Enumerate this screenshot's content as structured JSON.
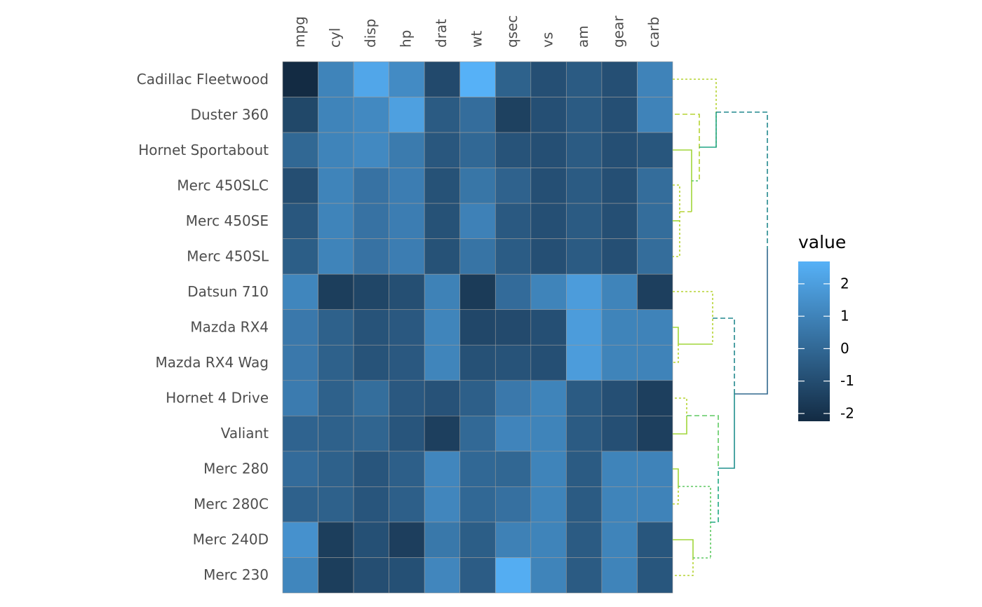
{
  "chart_data": {
    "type": "heatmap",
    "rows": [
      "Cadillac Fleetwood",
      "Duster 360",
      "Hornet Sportabout",
      "Merc 450SLC",
      "Merc 450SE",
      "Merc 450SL",
      "Datsun 710",
      "Mazda RX4",
      "Mazda RX4 Wag",
      "Hornet 4 Drive",
      "Valiant",
      "Merc 280",
      "Merc 280C",
      "Merc 240D",
      "Merc 230"
    ],
    "columns": [
      "mpg",
      "cyl",
      "disp",
      "hp",
      "drat",
      "wt",
      "qsec",
      "vs",
      "am",
      "gear",
      "carb"
    ],
    "values": [
      [
        -2.24,
        1.03,
        2.3,
        1.29,
        -1.13,
        2.69,
        -0.23,
        -0.9,
        -0.48,
        -0.9,
        0.99
      ],
      [
        -1.19,
        1.03,
        1.2,
        2.07,
        -0.49,
        0.2,
        -1.44,
        -0.9,
        -0.48,
        -0.9,
        0.99
      ],
      [
        -0.01,
        1.03,
        1.2,
        0.69,
        -0.63,
        0.0,
        -0.77,
        -0.9,
        -0.48,
        -0.9,
        -0.66
      ],
      [
        -0.95,
        1.03,
        0.38,
        0.79,
        -0.81,
        0.51,
        -0.21,
        -0.9,
        -0.48,
        -0.9,
        0.17
      ],
      [
        -0.63,
        1.03,
        0.38,
        0.79,
        -0.81,
        0.94,
        -0.55,
        -0.9,
        -0.48,
        -0.9,
        0.17
      ],
      [
        -0.38,
        1.03,
        0.38,
        0.79,
        -0.81,
        0.44,
        -0.44,
        -0.9,
        -0.48,
        -0.9,
        0.17
      ],
      [
        1.1,
        -1.55,
        -1.26,
        -0.92,
        0.95,
        -1.66,
        0.13,
        1.03,
        1.93,
        1.03,
        -1.49
      ],
      [
        0.61,
        -0.26,
        -0.75,
        -0.58,
        1.06,
        -1.21,
        -1.09,
        -0.9,
        1.93,
        1.03,
        0.99
      ],
      [
        0.61,
        -0.26,
        -0.75,
        -0.58,
        1.06,
        -0.84,
        -0.77,
        -0.9,
        1.93,
        1.03,
        0.99
      ],
      [
        0.72,
        -0.26,
        0.21,
        -0.58,
        -0.79,
        -0.33,
        0.6,
        1.03,
        -0.48,
        -0.9,
        -1.49
      ],
      [
        -0.17,
        -0.26,
        -0.12,
        -0.68,
        -1.51,
        0.03,
        1.04,
        1.03,
        -0.48,
        -0.9,
        -1.49
      ],
      [
        0.13,
        -0.26,
        -0.68,
        -0.33,
        1.11,
        0.0,
        -0.04,
        1.03,
        -0.48,
        1.03,
        0.99
      ],
      [
        -0.25,
        -0.26,
        -0.68,
        -0.33,
        1.11,
        0.0,
        0.3,
        1.03,
        -0.48,
        1.03,
        0.99
      ],
      [
        1.53,
        -1.55,
        -0.88,
        -1.53,
        0.59,
        -0.37,
        0.92,
        1.03,
        -0.48,
        1.03,
        -0.66
      ],
      [
        1.1,
        -1.55,
        -0.94,
        -0.88,
        1.11,
        -0.43,
        2.56,
        1.03,
        -0.48,
        1.03,
        -0.66
      ]
    ],
    "legend_title": "value",
    "colorbar_lim": [
      -2.24,
      2.69
    ],
    "colorbar_ticks": [
      -2,
      -1,
      0,
      1,
      2
    ],
    "low_color": "#132b43",
    "high_color": "#56b1f7"
  }
}
